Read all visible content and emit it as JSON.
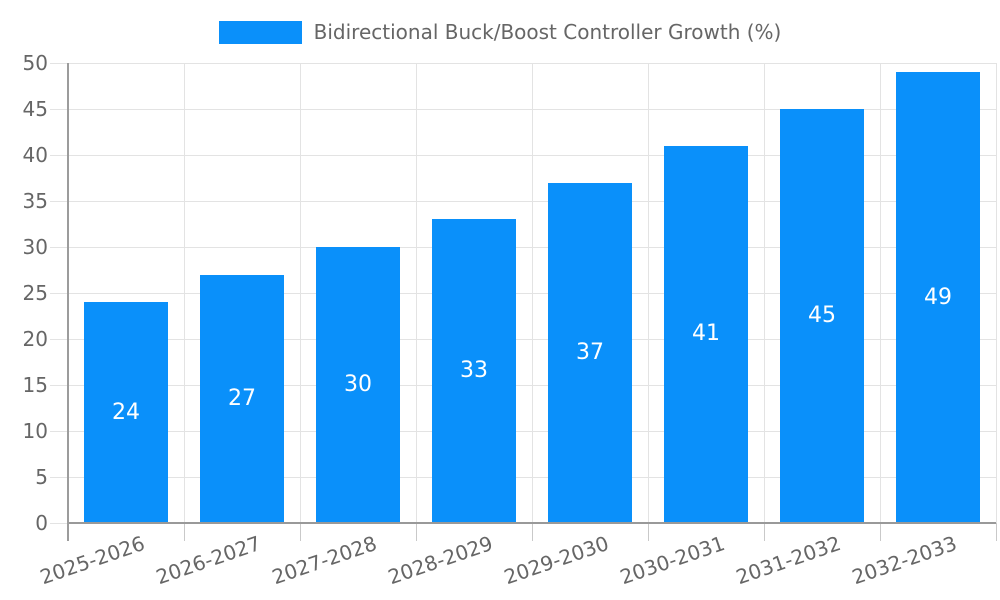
{
  "legend": {
    "label": "Bidirectional Buck/Boost Controller Growth (%)"
  },
  "chart_data": {
    "type": "bar",
    "title": "Bidirectional Buck/Boost Controller Growth (%)",
    "categories": [
      "2025-2026",
      "2026-2027",
      "2027-2028",
      "2028-2029",
      "2029-2030",
      "2030-2031",
      "2031-2032",
      "2032-2033"
    ],
    "series": [
      {
        "name": "Bidirectional Buck/Boost Controller Growth (%)",
        "values": [
          24,
          27,
          30,
          33,
          37,
          41,
          45,
          49
        ]
      }
    ],
    "value_labels_shown": true,
    "xlabel": "",
    "ylabel": "",
    "ylim": [
      0,
      50
    ],
    "yticks": [
      0,
      5,
      10,
      15,
      20,
      25,
      30,
      35,
      40,
      45,
      50
    ],
    "grid": true,
    "legend_position": "top",
    "colors": {
      "bar": "#0A90FA",
      "value_label": "#FFFFFF",
      "axis_text": "#666666",
      "gridline": "#E3E3E3",
      "axis_line": "#9C9C9C"
    }
  }
}
